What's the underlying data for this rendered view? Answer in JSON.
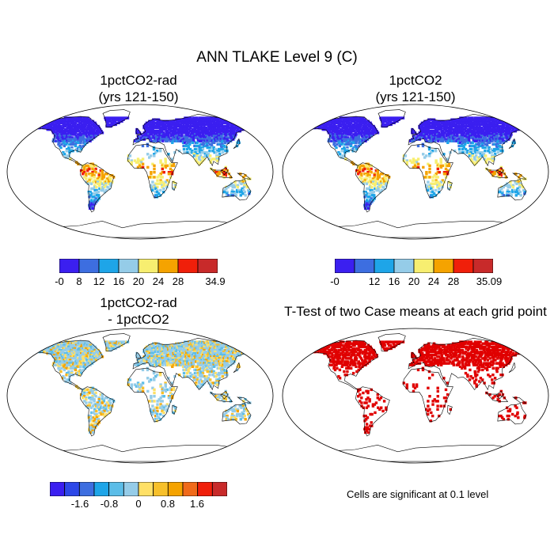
{
  "title": "ANN TLAKE Level 9 (C)",
  "panels": [
    {
      "id": "p1",
      "title_l1": "1pctCO2-rad",
      "title_l2": "(yrs 121-150)",
      "mode": "value"
    },
    {
      "id": "p2",
      "title_l1": "1pctCO2",
      "title_l2": "(yrs 121-150)",
      "mode": "value"
    },
    {
      "id": "p3",
      "title_l1": "1pctCO2-rad",
      "title_l2": "- 1pctCO2",
      "mode": "diff"
    },
    {
      "id": "p4",
      "title_l1": "T-Test of two Case means at each grid point",
      "title_l2": "",
      "mode": "sig"
    }
  ],
  "colorbars": {
    "cb1": {
      "colors": [
        "#3b1ff0",
        "#3d6ee0",
        "#1ea5e8",
        "#95cce8",
        "#f7ee70",
        "#f5a300",
        "#f01f0a",
        "#c82a2a"
      ],
      "labels": [
        "-0",
        "8",
        "12",
        "16",
        "20",
        "24",
        "28",
        "34.9"
      ]
    },
    "cb2": {
      "colors": [
        "#3b1ff0",
        "#3d6ee0",
        "#1ea5e8",
        "#95cce8",
        "#f7ee70",
        "#f5a300",
        "#f01f0a",
        "#c82a2a"
      ],
      "labels": [
        "-0",
        "12",
        "16",
        "20",
        "24",
        "28",
        "35.09"
      ]
    },
    "cb3": {
      "colors": [
        "#3b1ff0",
        "#2d48e8",
        "#3d6ee0",
        "#1ea5e8",
        "#5bbde8",
        "#95cce8",
        "#ffe066",
        "#f7c02a",
        "#f5a300",
        "#f06a1a",
        "#f01f0a",
        "#c82a2a"
      ],
      "labels": [
        "-1.6",
        "-0.8",
        "0",
        "0.8",
        "1.6"
      ]
    }
  },
  "note": "Cells are significant at 0.1 level"
}
